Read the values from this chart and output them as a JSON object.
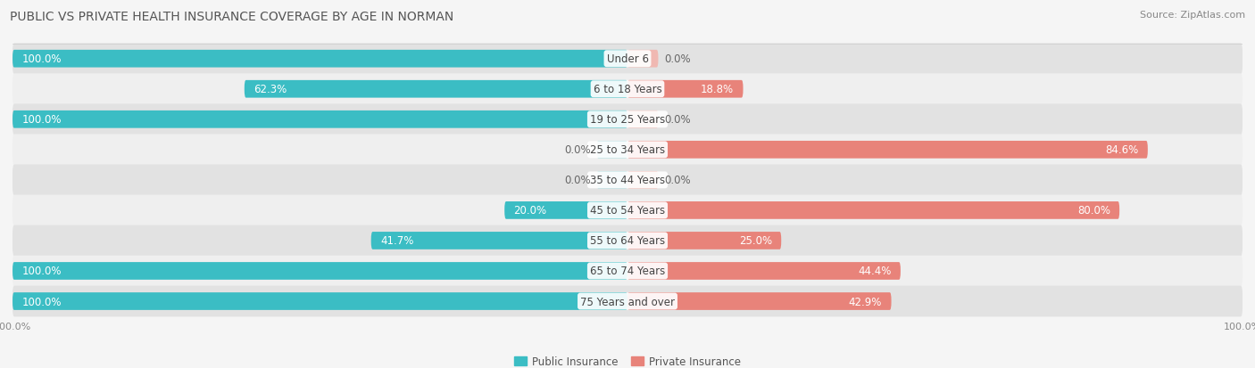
{
  "title": "PUBLIC VS PRIVATE HEALTH INSURANCE COVERAGE BY AGE IN NORMAN",
  "source": "Source: ZipAtlas.com",
  "categories": [
    "Under 6",
    "6 to 18 Years",
    "19 to 25 Years",
    "25 to 34 Years",
    "35 to 44 Years",
    "45 to 54 Years",
    "55 to 64 Years",
    "65 to 74 Years",
    "75 Years and over"
  ],
  "public_values": [
    100.0,
    62.3,
    100.0,
    0.0,
    0.0,
    20.0,
    41.7,
    100.0,
    100.0
  ],
  "private_values": [
    0.0,
    18.8,
    0.0,
    84.6,
    0.0,
    80.0,
    25.0,
    44.4,
    42.9
  ],
  "public_color": "#3bbdc4",
  "private_color": "#e8837a",
  "public_color_light": "#a8d8dc",
  "private_color_light": "#f0b8b2",
  "row_bg_colors": [
    "#e2e2e2",
    "#efefef"
  ],
  "background_color": "#f5f5f5",
  "title_fontsize": 10,
  "source_fontsize": 8,
  "label_fontsize": 8.5,
  "cat_fontsize": 8.5,
  "axis_label_fontsize": 8,
  "bar_height": 0.58,
  "stub_size": 5.0,
  "xlim_left": -100,
  "xlim_right": 100
}
